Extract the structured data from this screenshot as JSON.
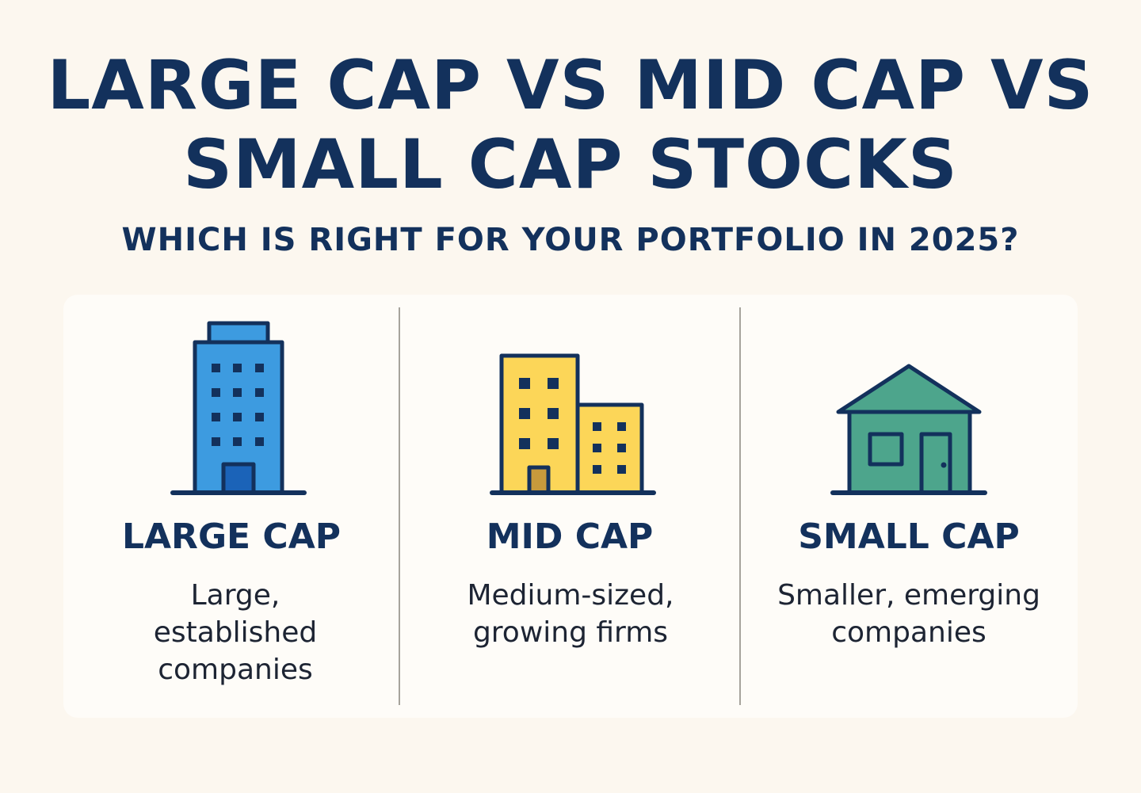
{
  "title": {
    "line1": "LARGE CAP VS MID CAP VS",
    "line2": "SMALL CAP STOCKS"
  },
  "subtitle": "WHICH IS RIGHT FOR YOUR PORTFOLIO IN 2025?",
  "columns": [
    {
      "title": "LARGE CAP",
      "description": "Large, established companies",
      "icon": "skyscraper-icon"
    },
    {
      "title": "MID CAP",
      "description": "Medium-sized, growing firms",
      "icon": "buildings-icon"
    },
    {
      "title": "SMALL CAP",
      "description": "Smaller, emerging companies",
      "icon": "house-icon"
    }
  ],
  "colors": {
    "background": "#fcf7ef",
    "card": "#fefcf8",
    "navy": "#13315c",
    "large_cap_blue": "#3d9be0",
    "mid_cap_yellow": "#fcd658",
    "small_cap_green": "#4da58c"
  }
}
